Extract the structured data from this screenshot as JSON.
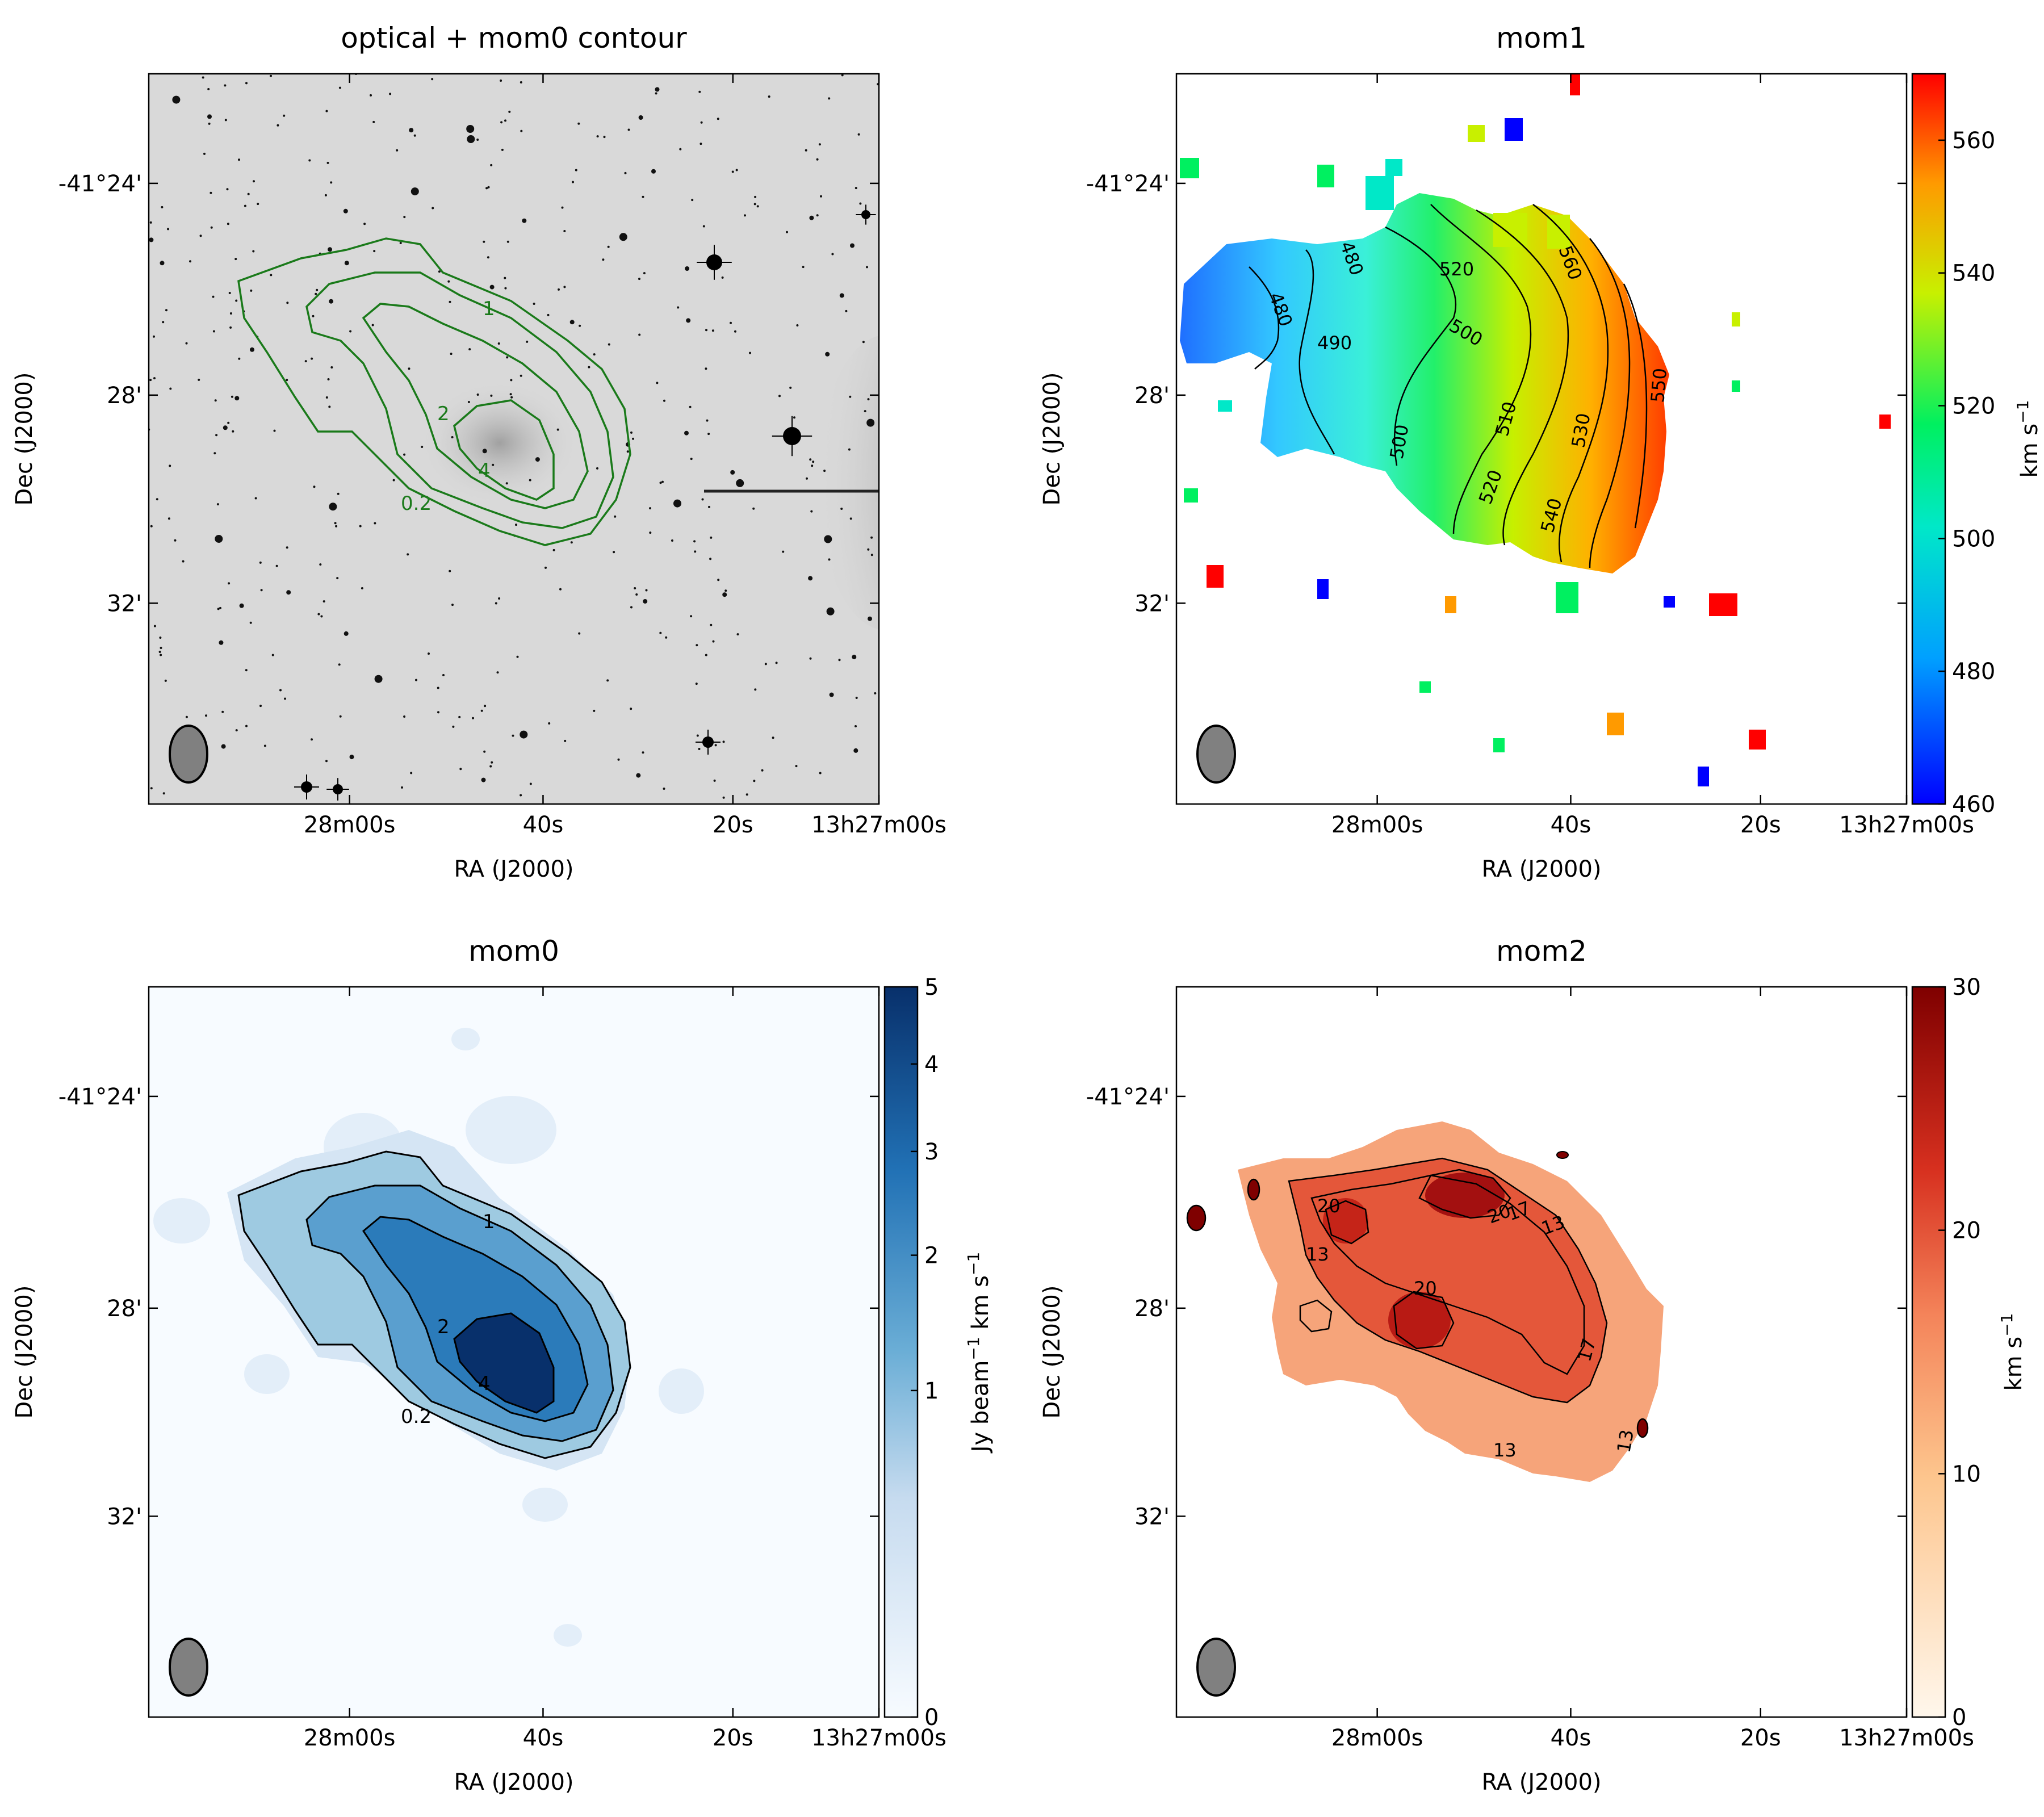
{
  "figure": {
    "panels": {
      "optical": {
        "title": "optical + mom0 contour",
        "xlabel": "RA (J2000)",
        "ylabel": "Dec (J2000)",
        "xticks": [
          "28m00s",
          "40s",
          "20s",
          "13h27m00s"
        ],
        "yticks": [
          "-41°24'",
          "28'",
          "32'"
        ],
        "contour_labels": [
          "1",
          "2",
          "4",
          "0.2"
        ]
      },
      "mom1": {
        "title": "mom1",
        "xlabel": "RA (J2000)",
        "ylabel": "Dec (J2000)",
        "xticks": [
          "28m00s",
          "40s",
          "20s",
          "13h27m00s"
        ],
        "yticks": [
          "-41°24'",
          "28'",
          "32'"
        ],
        "colorbar_ticks": [
          "560",
          "540",
          "520",
          "500",
          "480",
          "460"
        ],
        "colorbar_label": "km s",
        "colorbar_sup": "−1",
        "contour_labels": [
          "480",
          "480",
          "520",
          "500",
          "490",
          "510",
          "550",
          "530",
          "500",
          "520",
          "540",
          "560"
        ]
      },
      "mom0": {
        "title": "mom0",
        "xlabel": "RA (J2000)",
        "ylabel": "Dec (J2000)",
        "xticks": [
          "28m00s",
          "40s",
          "20s",
          "13h27m00s"
        ],
        "yticks": [
          "-41°24'",
          "28'",
          "32'"
        ],
        "colorbar_ticks": [
          "5",
          "4",
          "3",
          "2",
          "1",
          "0"
        ],
        "colorbar_label_a": "Jy beam",
        "colorbar_sup_a": "−1",
        "colorbar_label_b": " km s",
        "colorbar_sup_b": "−1",
        "contour_labels": [
          "1",
          "2",
          "4",
          "0.2"
        ]
      },
      "mom2": {
        "title": "mom2",
        "xlabel": "RA (J2000)",
        "ylabel": "Dec (J2000)",
        "xticks": [
          "28m00s",
          "40s",
          "20s",
          "13h27m00s"
        ],
        "yticks": [
          "-41°24'",
          "28'",
          "32'"
        ],
        "colorbar_ticks": [
          "30",
          "20",
          "10",
          "0"
        ],
        "colorbar_label": "km s",
        "colorbar_sup": "−1",
        "contour_labels": [
          "20",
          "13",
          "20",
          "17",
          "13",
          "20",
          "17",
          "13",
          "13"
        ]
      }
    },
    "colors": {
      "optical_bg": "#d9d9d9",
      "contour_green": "#1a7a1a",
      "beam_fill": "#808080"
    }
  },
  "chart_data": [
    {
      "type": "heatmap",
      "title": "optical + mom0 contour",
      "xlabel": "RA (J2000)",
      "ylabel": "Dec (J2000)",
      "x_ticks": [
        "28m00s",
        "40s",
        "20s",
        "13h27m00s"
      ],
      "y_ticks": [
        "-41°24'",
        "28'",
        "32'"
      ],
      "contour_levels": [
        0.2,
        1,
        2,
        4
      ],
      "contour_units": "Jy beam^-1 km s^-1"
    },
    {
      "type": "heatmap",
      "title": "mom1",
      "xlabel": "RA (J2000)",
      "ylabel": "Dec (J2000)",
      "x_ticks": [
        "28m00s",
        "40s",
        "20s",
        "13h27m00s"
      ],
      "y_ticks": [
        "-41°24'",
        "28'",
        "32'"
      ],
      "colorbar_range": [
        460,
        570
      ],
      "colorbar_ticks": [
        460,
        480,
        500,
        520,
        540,
        560
      ],
      "colorbar_label": "km s^-1",
      "colormap": "jet",
      "contour_levels": [
        480,
        490,
        500,
        510,
        520,
        530,
        540,
        550,
        560
      ]
    },
    {
      "type": "heatmap",
      "title": "mom0",
      "xlabel": "RA (J2000)",
      "ylabel": "Dec (J2000)",
      "x_ticks": [
        "28m00s",
        "40s",
        "20s",
        "13h27m00s"
      ],
      "y_ticks": [
        "-41°24'",
        "28'",
        "32'"
      ],
      "colorbar_range": [
        0,
        5
      ],
      "colorbar_ticks": [
        0,
        1,
        2,
        3,
        4,
        5
      ],
      "colorbar_label": "Jy beam^-1 km s^-1",
      "colormap": "Blues",
      "contour_levels": [
        0.2,
        1,
        2,
        4
      ]
    },
    {
      "type": "heatmap",
      "title": "mom2",
      "xlabel": "RA (J2000)",
      "ylabel": "Dec (J2000)",
      "x_ticks": [
        "28m00s",
        "40s",
        "20s",
        "13h27m00s"
      ],
      "y_ticks": [
        "-41°24'",
        "28'",
        "32'"
      ],
      "colorbar_range": [
        0,
        30
      ],
      "colorbar_ticks": [
        0,
        10,
        20,
        30
      ],
      "colorbar_label": "km s^-1",
      "colormap": "OrRd",
      "contour_levels": [
        13,
        17,
        20
      ]
    }
  ]
}
